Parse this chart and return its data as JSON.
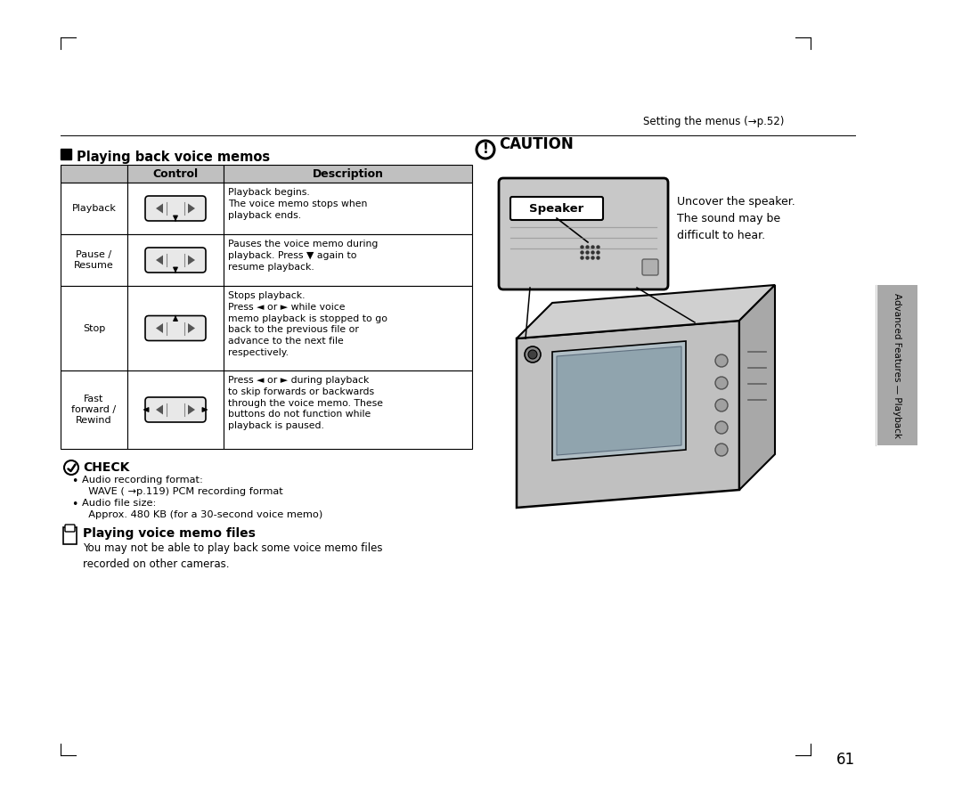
{
  "page_bg": "#ffffff",
  "header_text": "Setting the menus (→p.52)",
  "page_number": "61",
  "section_title": "Playing back voice memos",
  "table_header_bg": "#c0c0c0",
  "table_col1": "Control",
  "table_col2": "Description",
  "table_rows": [
    {
      "label": "Playback",
      "desc": "Playback begins.\nThe voice memo stops when\nplayback ends."
    },
    {
      "label": "Pause /\nResume",
      "desc": "Pauses the voice memo during\nplayback. Press ▼ again to\nresume playback."
    },
    {
      "label": "Stop",
      "desc": "Stops playback.\nPress ◄ or ► while voice\nmemo playback is stopped to go\nback to the previous file or\nadvance to the next file\nrespectively."
    },
    {
      "label": "Fast\nforward /\nRewind",
      "desc": "Press ◄ or ► during playback\nto skip forwards or backwards\nthrough the voice memo. These\nbuttons do not function while\nplayback is paused."
    }
  ],
  "check_title": "CHECK",
  "check_bullets": [
    "Audio recording format:\n  WAVE ( →p.119) PCM recording format",
    "Audio file size:\n  Approx. 480 KB (for a 30-second voice memo)"
  ],
  "note_title": "Playing voice memo files",
  "note_text": "You may not be able to play back some voice memo files\nrecorded on other cameras.",
  "caution_title": "CAUTION",
  "speaker_label": "Speaker",
  "speaker_text": "Uncover the speaker.\nThe sound may be\ndifficult to hear.",
  "sidebar_text": "Advanced Features — Playback",
  "sidebar_bg": "#a8a8a8"
}
